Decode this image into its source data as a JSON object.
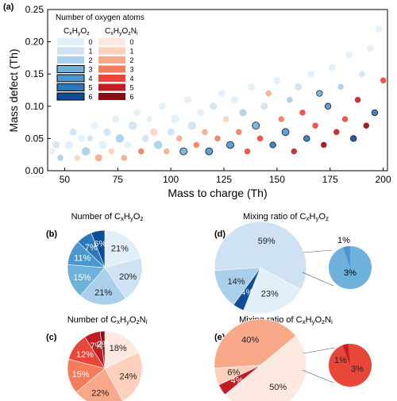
{
  "colors": {
    "blue": [
      "#e2eff9",
      "#cfe2f3",
      "#a9cfeb",
      "#6fb1dd",
      "#4a97d0",
      "#2b78bb",
      "#0f4e96"
    ],
    "red": [
      "#fde9df",
      "#fcd0bc",
      "#f9a989",
      "#f47b5c",
      "#e9463a",
      "#c21d25",
      "#8b0c15"
    ]
  },
  "chart_data": [
    {
      "id": "a",
      "panel_label": "(a)",
      "type": "scatter",
      "xlabel": "Mass to charge (Th)",
      "ylabel": "Mass defect (Th)",
      "xlim": [
        42,
        202
      ],
      "ylim": [
        0,
        0.25
      ],
      "xticks": [
        "50",
        "75",
        "100",
        "125",
        "150",
        "175",
        "200"
      ],
      "yticks": [
        "0.00",
        "0.05",
        "0.10",
        "0.15",
        "0.20",
        "0.25"
      ],
      "legend_title": "Number of oxygen atoms",
      "legend_groups": [
        "CxHyOz",
        "CxHyOzNi"
      ],
      "legend_levels": [
        "0",
        "1",
        "2",
        "3",
        "4",
        "5",
        "6"
      ],
      "points": [
        [
          44,
          0.03,
          "b",
          0,
          5
        ],
        [
          46,
          0.04,
          "b",
          1,
          6
        ],
        [
          48,
          0.02,
          "b",
          2,
          5
        ],
        [
          52,
          0.04,
          "b",
          0,
          7
        ],
        [
          54,
          0.06,
          "b",
          1,
          6
        ],
        [
          56,
          0.02,
          "r",
          1,
          5
        ],
        [
          58,
          0.05,
          "b",
          0,
          6
        ],
        [
          60,
          0.03,
          "b",
          2,
          7
        ],
        [
          62,
          0.05,
          "b",
          1,
          5
        ],
        [
          64,
          0.07,
          "b",
          0,
          6
        ],
        [
          66,
          0.02,
          "r",
          2,
          6
        ],
        [
          68,
          0.04,
          "b",
          0,
          7
        ],
        [
          70,
          0.06,
          "b",
          1,
          6
        ],
        [
          72,
          0.03,
          "r",
          1,
          5
        ],
        [
          74,
          0.08,
          "b",
          0,
          6
        ],
        [
          76,
          0.05,
          "b",
          2,
          7
        ],
        [
          78,
          0.02,
          "r",
          2,
          5
        ],
        [
          80,
          0.04,
          "b",
          0,
          6
        ],
        [
          82,
          0.07,
          "b",
          1,
          7
        ],
        [
          84,
          0.09,
          "b",
          0,
          6
        ],
        [
          86,
          0.03,
          "r",
          3,
          5
        ],
        [
          88,
          0.05,
          "b",
          1,
          6
        ],
        [
          90,
          0.08,
          "b",
          0,
          5
        ],
        [
          92,
          0.06,
          "r",
          1,
          6
        ],
        [
          94,
          0.04,
          "b",
          2,
          7
        ],
        [
          96,
          0.1,
          "b",
          0,
          6
        ],
        [
          98,
          0.03,
          "r",
          2,
          5
        ],
        [
          100,
          0.06,
          "b",
          1,
          6
        ],
        [
          102,
          0.08,
          "b",
          0,
          7
        ],
        [
          104,
          0.05,
          "r",
          2,
          5
        ],
        [
          106,
          0.03,
          "b",
          3,
          6
        ],
        [
          108,
          0.11,
          "b",
          0,
          6
        ],
        [
          110,
          0.07,
          "b",
          1,
          7
        ],
        [
          112,
          0.04,
          "r",
          3,
          5
        ],
        [
          114,
          0.09,
          "b",
          0,
          6
        ],
        [
          116,
          0.06,
          "r",
          2,
          5
        ],
        [
          118,
          0.03,
          "b",
          4,
          6
        ],
        [
          120,
          0.1,
          "b",
          1,
          6
        ],
        [
          122,
          0.05,
          "r",
          3,
          5
        ],
        [
          124,
          0.12,
          "b",
          0,
          6
        ],
        [
          126,
          0.08,
          "r",
          1,
          5
        ],
        [
          128,
          0.04,
          "b",
          4,
          6
        ],
        [
          130,
          0.11,
          "b",
          0,
          6
        ],
        [
          132,
          0.06,
          "r",
          3,
          5
        ],
        [
          134,
          0.09,
          "b",
          2,
          6
        ],
        [
          136,
          0.03,
          "r",
          4,
          5
        ],
        [
          138,
          0.13,
          "b",
          0,
          6
        ],
        [
          140,
          0.07,
          "b",
          3,
          6
        ],
        [
          142,
          0.05,
          "r",
          4,
          5
        ],
        [
          144,
          0.1,
          "b",
          1,
          6
        ],
        [
          146,
          0.12,
          "r",
          2,
          5
        ],
        [
          148,
          0.04,
          "b",
          5,
          5
        ],
        [
          150,
          0.14,
          "b",
          0,
          6
        ],
        [
          152,
          0.08,
          "r",
          3,
          5
        ],
        [
          154,
          0.06,
          "b",
          4,
          6
        ],
        [
          156,
          0.11,
          "b",
          2,
          5
        ],
        [
          158,
          0.03,
          "r",
          5,
          5
        ],
        [
          160,
          0.13,
          "b",
          1,
          6
        ],
        [
          162,
          0.09,
          "r",
          4,
          5
        ],
        [
          164,
          0.05,
          "b",
          5,
          5
        ],
        [
          166,
          0.15,
          "b",
          0,
          6
        ],
        [
          168,
          0.07,
          "r",
          4,
          5
        ],
        [
          170,
          0.12,
          "b",
          3,
          5
        ],
        [
          172,
          0.04,
          "r",
          6,
          5
        ],
        [
          174,
          0.1,
          "b",
          4,
          5
        ],
        [
          176,
          0.16,
          "b",
          0,
          6
        ],
        [
          178,
          0.06,
          "r",
          5,
          5
        ],
        [
          180,
          0.13,
          "b",
          2,
          5
        ],
        [
          182,
          0.08,
          "r",
          4,
          5
        ],
        [
          184,
          0.18,
          "b",
          0,
          6
        ],
        [
          186,
          0.05,
          "b",
          6,
          5
        ],
        [
          188,
          0.11,
          "r",
          5,
          5
        ],
        [
          190,
          0.15,
          "b",
          1,
          5
        ],
        [
          192,
          0.07,
          "r",
          6,
          5
        ],
        [
          194,
          0.19,
          "b",
          0,
          6
        ],
        [
          196,
          0.09,
          "b",
          5,
          5
        ],
        [
          198,
          0.22,
          "b",
          0,
          6
        ],
        [
          200,
          0.14,
          "r",
          4,
          5
        ]
      ]
    },
    {
      "id": "b",
      "panel_label": "(b)",
      "type": "pie",
      "title": "Number of CxHyOz",
      "slices": [
        {
          "value": 21,
          "label": "21%",
          "level": 0
        },
        {
          "value": 20,
          "label": "20%",
          "level": 1
        },
        {
          "value": 21,
          "label": "21%",
          "level": 2
        },
        {
          "value": 15,
          "label": "15%",
          "level": 3
        },
        {
          "value": 11,
          "label": "11%",
          "level": 4
        },
        {
          "value": 7,
          "label": "7%",
          "level": 5
        },
        {
          "value": 6,
          "label": "6%",
          "level": 6
        }
      ]
    },
    {
      "id": "c",
      "panel_label": "(c)",
      "type": "pie",
      "title": "Number of CxHyOzNi",
      "slices": [
        {
          "value": 18,
          "label": "18%",
          "level": 0
        },
        {
          "value": 24,
          "label": "24%",
          "level": 1
        },
        {
          "value": 22,
          "label": "22%",
          "level": 2
        },
        {
          "value": 15,
          "label": "15%",
          "level": 3
        },
        {
          "value": 12,
          "label": "12%",
          "level": 4
        },
        {
          "value": 7,
          "label": "7%",
          "level": 5
        },
        {
          "value": 2,
          "label": "2%",
          "level": 6
        }
      ]
    },
    {
      "id": "d",
      "panel_label": "(d)",
      "type": "pie",
      "title": "Mixing ratio of CxHyOz",
      "slices": [
        {
          "value": 59,
          "label": "59%",
          "level": 1
        },
        {
          "value": 23,
          "label": "23%",
          "level": 0
        },
        {
          "value": 4,
          "label": "4%",
          "level": 6
        },
        {
          "value": 14,
          "label": "14%",
          "level": 2
        }
      ],
      "sub_slices": [
        {
          "value": 3,
          "label": "3%",
          "level": 3
        },
        {
          "value": 1,
          "label": "1%",
          "level": 4
        }
      ]
    },
    {
      "id": "e",
      "panel_label": "(e)",
      "type": "pie",
      "title": "Mixing ratio of CxHyOzNi",
      "slices": [
        {
          "value": 40,
          "label": "40%",
          "level": 2
        },
        {
          "value": 50,
          "label": "50%",
          "level": 0
        },
        {
          "value": 4,
          "label": "4%",
          "level": 5
        },
        {
          "value": 6,
          "label": "6%",
          "level": 1
        }
      ],
      "sub_slices": [
        {
          "value": 3,
          "label": "3%",
          "level": 4
        },
        {
          "value": 1,
          "label": "1%",
          "level": 3
        }
      ]
    }
  ]
}
